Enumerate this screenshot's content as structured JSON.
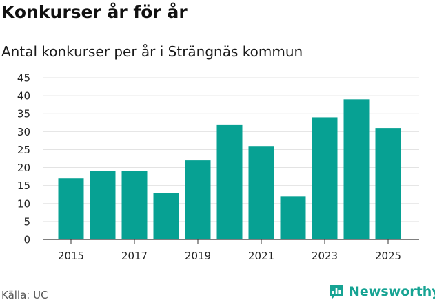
{
  "title": "Konkurser år för år",
  "subtitle": "Antal konkurser per år i Strängnäs kommun",
  "source": "Källa: UC",
  "brand": {
    "name": "Newsworthy",
    "icon": "newsworthy-logo-icon",
    "color": "#16a393"
  },
  "chart_data": {
    "type": "bar",
    "title": "Antal konkurser per år i Strängnäs kommun",
    "xlabel": "",
    "ylabel": "",
    "categories": [
      "2015",
      "2016",
      "2017",
      "2018",
      "2019",
      "2020",
      "2021",
      "2022",
      "2023",
      "2024",
      "2025"
    ],
    "values": [
      17,
      19,
      19,
      13,
      22,
      32,
      26,
      12,
      34,
      39,
      31
    ],
    "x_tick_labels": [
      "2015",
      "2017",
      "2019",
      "2021",
      "2023",
      "2025"
    ],
    "y_ticks": [
      0,
      5,
      10,
      15,
      20,
      25,
      30,
      35,
      40,
      45
    ],
    "ylim": [
      0,
      45
    ],
    "grid": true,
    "bar_color": "#07a193",
    "grid_color": "#e3e3e3",
    "axis_color": "#333333"
  }
}
